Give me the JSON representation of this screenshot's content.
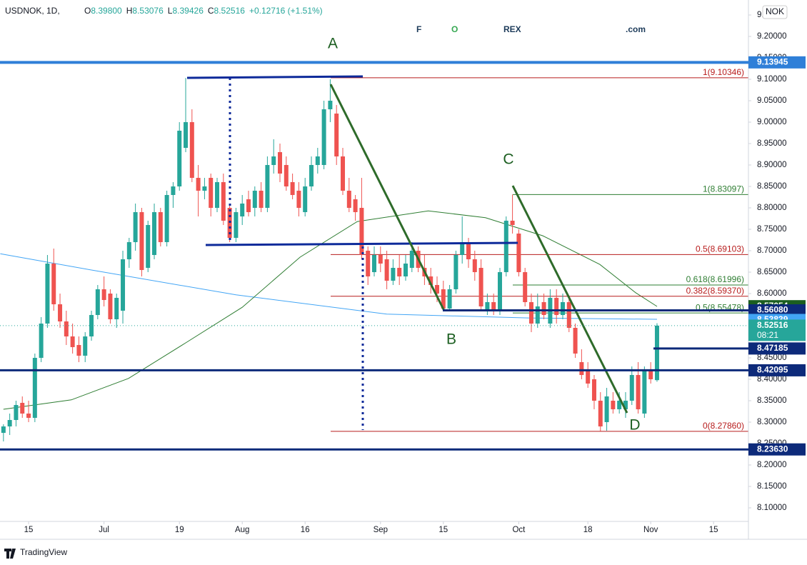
{
  "chart_data": {
    "type": "candlestick",
    "symbol": "USDNOK, 1D,",
    "legend": [
      {
        "key": "O",
        "value": "8.39800"
      },
      {
        "key": "H",
        "value": "8.53076"
      },
      {
        "key": "L",
        "value": "8.39426"
      },
      {
        "key": "C",
        "value": "8.52516"
      },
      {
        "key": "",
        "value": "+0.12716 (+1.51%)"
      }
    ],
    "logo": [
      "F",
      "O",
      "REX",
      ".com"
    ],
    "currency": "NOK",
    "footer": "TradingView",
    "up_color": "#26a69a",
    "down_color": "#ef5350",
    "xlim": [
      -4.55,
      114.55
    ],
    "ylim": [
      8.0683,
      9.285
    ],
    "xticks": [
      {
        "value": 0,
        "label": "15"
      },
      {
        "value": 12,
        "label": "Jul"
      },
      {
        "value": 24,
        "label": "19"
      },
      {
        "value": 34,
        "label": "Aug"
      },
      {
        "value": 44,
        "label": "16"
      },
      {
        "value": 56,
        "label": "Sep"
      },
      {
        "value": 66,
        "label": "15"
      },
      {
        "value": 78,
        "label": "Oct"
      },
      {
        "value": 89,
        "label": "18"
      },
      {
        "value": 99,
        "label": "Nov"
      },
      {
        "value": 109,
        "label": "15"
      }
    ],
    "yticks": [
      {
        "value": 8.1,
        "label": "8.10000"
      },
      {
        "value": 8.15,
        "label": "8.15000"
      },
      {
        "value": 8.2,
        "label": "8.20000"
      },
      {
        "value": 8.25,
        "label": "8.25000"
      },
      {
        "value": 8.3,
        "label": "8.30000"
      },
      {
        "value": 8.35,
        "label": "8.35000"
      },
      {
        "value": 8.4,
        "label": "8.40000"
      },
      {
        "value": 8.45,
        "label": "8.45000"
      },
      {
        "value": 8.5,
        "label": "8.50000"
      },
      {
        "value": 8.55,
        "label": "8.55000"
      },
      {
        "value": 8.6,
        "label": "8.60000"
      },
      {
        "value": 8.65,
        "label": "8.65000"
      },
      {
        "value": 8.7,
        "label": "8.70000"
      },
      {
        "value": 8.75,
        "label": "8.75000"
      },
      {
        "value": 8.8,
        "label": "8.80000"
      },
      {
        "value": 8.85,
        "label": "8.85000"
      },
      {
        "value": 8.9,
        "label": "8.90000"
      },
      {
        "value": 8.95,
        "label": "8.95000"
      },
      {
        "value": 9.0,
        "label": "9.00000"
      },
      {
        "value": 9.05,
        "label": "9.05000"
      },
      {
        "value": 9.1,
        "label": "9.10000"
      },
      {
        "value": 9.15,
        "label": "9.15000"
      },
      {
        "value": 9.2,
        "label": "9.20000"
      },
      {
        "value": 9.25,
        "label": "9.25000"
      }
    ],
    "x": [
      -4,
      -3,
      -2,
      -1,
      0,
      1,
      2,
      3,
      4,
      5,
      6,
      7,
      8,
      9,
      10,
      11,
      12,
      13,
      14,
      15,
      16,
      17,
      18,
      19,
      20,
      21,
      22,
      23,
      24,
      25,
      26,
      27,
      28,
      29,
      30,
      31,
      32,
      33,
      34,
      35,
      36,
      37,
      38,
      39,
      40,
      41,
      42,
      43,
      44,
      45,
      46,
      47,
      48,
      49,
      50,
      51,
      52,
      53,
      54,
      55,
      56,
      57,
      58,
      59,
      60,
      61,
      62,
      63,
      64,
      65,
      66,
      67,
      68,
      69,
      70,
      71,
      72,
      73,
      74,
      75,
      76,
      77,
      78,
      79,
      80,
      81,
      82,
      83,
      84,
      85,
      86,
      87,
      88,
      89,
      90,
      91,
      92,
      93,
      94,
      95,
      96,
      97,
      98,
      99,
      100
    ],
    "ohlc": [
      [
        8.275,
        8.295,
        8.255,
        8.29
      ],
      [
        8.29,
        8.32,
        8.27,
        8.305
      ],
      [
        8.305,
        8.35,
        8.29,
        8.34
      ],
      [
        8.345,
        8.36,
        8.31,
        8.32
      ],
      [
        8.32,
        8.35,
        8.3,
        8.31
      ],
      [
        8.31,
        8.46,
        8.3,
        8.45
      ],
      [
        8.45,
        8.545,
        8.44,
        8.53
      ],
      [
        8.53,
        8.69,
        8.52,
        8.67
      ],
      [
        8.67,
        8.705,
        8.56,
        8.575
      ],
      [
        8.575,
        8.6,
        8.52,
        8.535
      ],
      [
        8.535,
        8.56,
        8.48,
        8.5
      ],
      [
        8.5,
        8.53,
        8.46,
        8.475
      ],
      [
        8.48,
        8.5,
        8.44,
        8.455
      ],
      [
        8.455,
        8.51,
        8.44,
        8.5
      ],
      [
        8.5,
        8.56,
        8.49,
        8.55
      ],
      [
        8.55,
        8.62,
        8.54,
        8.61
      ],
      [
        8.61,
        8.64,
        8.57,
        8.585
      ],
      [
        8.6,
        8.61,
        8.53,
        8.54
      ],
      [
        8.54,
        8.6,
        8.52,
        8.59
      ],
      [
        8.56,
        8.7,
        8.53,
        8.68
      ],
      [
        8.68,
        8.73,
        8.66,
        8.72
      ],
      [
        8.72,
        8.81,
        8.7,
        8.79
      ],
      [
        8.79,
        8.8,
        8.64,
        8.655
      ],
      [
        8.66,
        8.77,
        8.65,
        8.76
      ],
      [
        8.69,
        8.81,
        8.68,
        8.79
      ],
      [
        8.79,
        8.8,
        8.71,
        8.72
      ],
      [
        8.72,
        8.84,
        8.71,
        8.83
      ],
      [
        8.83,
        8.86,
        8.8,
        8.85
      ],
      [
        8.85,
        9.0,
        8.84,
        8.98
      ],
      [
        8.94,
        9.103,
        8.93,
        9.0
      ],
      [
        9.0,
        9.03,
        8.86,
        8.87
      ],
      [
        8.87,
        8.9,
        8.78,
        8.84
      ],
      [
        8.84,
        8.87,
        8.82,
        8.85
      ],
      [
        8.87,
        8.88,
        8.78,
        8.8
      ],
      [
        8.8,
        8.87,
        8.79,
        8.86
      ],
      [
        8.86,
        8.88,
        8.76,
        8.77
      ],
      [
        8.8,
        8.81,
        8.72,
        8.73
      ],
      [
        8.73,
        8.8,
        8.72,
        8.79
      ],
      [
        8.78,
        8.83,
        8.76,
        8.81
      ],
      [
        8.82,
        8.84,
        8.78,
        8.79
      ],
      [
        8.8,
        8.85,
        8.78,
        8.84
      ],
      [
        8.84,
        8.86,
        8.79,
        8.8
      ],
      [
        8.8,
        8.92,
        8.79,
        8.9
      ],
      [
        8.9,
        8.96,
        8.88,
        8.92
      ],
      [
        8.93,
        8.95,
        8.86,
        8.88
      ],
      [
        8.9,
        8.92,
        8.84,
        8.85
      ],
      [
        8.86,
        8.88,
        8.82,
        8.83
      ],
      [
        8.84,
        8.86,
        8.78,
        8.8
      ],
      [
        8.79,
        8.87,
        8.78,
        8.85
      ],
      [
        8.85,
        8.92,
        8.84,
        8.9
      ],
      [
        8.9,
        8.94,
        8.88,
        8.92
      ],
      [
        8.9,
        9.05,
        8.89,
        9.03
      ],
      [
        9.03,
        9.1,
        9.0,
        9.05
      ],
      [
        9.02,
        9.04,
        8.9,
        8.92
      ],
      [
        8.92,
        8.94,
        8.83,
        8.84
      ],
      [
        8.84,
        8.87,
        8.79,
        8.8
      ],
      [
        8.82,
        8.83,
        8.77,
        8.79
      ],
      [
        8.8,
        8.87,
        8.68,
        8.69
      ],
      [
        8.7,
        8.71,
        8.62,
        8.64
      ],
      [
        8.65,
        8.71,
        8.64,
        8.69
      ],
      [
        8.69,
        8.71,
        8.65,
        8.67
      ],
      [
        8.68,
        8.7,
        8.61,
        8.63
      ],
      [
        8.63,
        8.68,
        8.62,
        8.66
      ],
      [
        8.66,
        8.69,
        8.62,
        8.64
      ],
      [
        8.64,
        8.69,
        8.63,
        8.67
      ],
      [
        8.66,
        8.72,
        8.65,
        8.7
      ],
      [
        8.7,
        8.71,
        8.65,
        8.66
      ],
      [
        8.66,
        8.69,
        8.62,
        8.64
      ],
      [
        8.64,
        8.66,
        8.6,
        8.62
      ],
      [
        8.62,
        8.64,
        8.58,
        8.6
      ],
      [
        8.61,
        8.63,
        8.56,
        8.565
      ],
      [
        8.565,
        8.62,
        8.56,
        8.61
      ],
      [
        8.61,
        8.7,
        8.6,
        8.69
      ],
      [
        8.69,
        8.78,
        8.67,
        8.72
      ],
      [
        8.72,
        8.73,
        8.66,
        8.68
      ],
      [
        8.68,
        8.7,
        8.63,
        8.65
      ],
      [
        8.66,
        8.68,
        8.56,
        8.57
      ],
      [
        8.56,
        8.6,
        8.55,
        8.58
      ],
      [
        8.58,
        8.6,
        8.55,
        8.56
      ],
      [
        8.56,
        8.66,
        8.55,
        8.65
      ],
      [
        8.65,
        8.78,
        8.64,
        8.77
      ],
      [
        8.77,
        8.831,
        8.74,
        8.76
      ],
      [
        8.74,
        8.75,
        8.64,
        8.65
      ],
      [
        8.65,
        8.66,
        8.57,
        8.58
      ],
      [
        8.58,
        8.6,
        8.51,
        8.53
      ],
      [
        8.53,
        8.6,
        8.52,
        8.57
      ],
      [
        8.58,
        8.6,
        8.54,
        8.55
      ],
      [
        8.53,
        8.61,
        8.52,
        8.59
      ],
      [
        8.59,
        8.61,
        8.53,
        8.55
      ],
      [
        8.55,
        8.6,
        8.54,
        8.58
      ],
      [
        8.58,
        8.59,
        8.51,
        8.52
      ],
      [
        8.52,
        8.53,
        8.45,
        8.46
      ],
      [
        8.44,
        8.47,
        8.4,
        8.41
      ],
      [
        8.42,
        8.44,
        8.38,
        8.39
      ],
      [
        8.4,
        8.41,
        8.33,
        8.35
      ],
      [
        8.35,
        8.37,
        8.279,
        8.29
      ],
      [
        8.3,
        8.38,
        8.28,
        8.36
      ],
      [
        8.35,
        8.37,
        8.32,
        8.33
      ],
      [
        8.33,
        8.37,
        8.32,
        8.35
      ],
      [
        8.33,
        8.37,
        8.31,
        8.35
      ],
      [
        8.35,
        8.43,
        8.34,
        8.41
      ],
      [
        8.41,
        8.44,
        8.32,
        8.33
      ],
      [
        8.32,
        8.43,
        8.31,
        8.42
      ],
      [
        8.42,
        8.44,
        8.39,
        8.4
      ],
      [
        8.398,
        8.53076,
        8.39426,
        8.52516
      ]
    ],
    "moving_averages": [
      {
        "color": "#42a5f5",
        "x": [
          -4.5,
          10,
          33,
          57,
          80,
          100
        ],
        "values": [
          8.693,
          8.655,
          8.597,
          8.552,
          8.543,
          8.54
        ]
      },
      {
        "color": "#2e7d32",
        "x": [
          -4,
          6.8,
          15.9,
          25,
          34,
          43.2,
          52.3,
          63.6,
          72.7,
          81.8,
          90.9,
          96.6,
          100
        ],
        "values": [
          8.33,
          8.352,
          8.402,
          8.485,
          8.568,
          8.685,
          8.768,
          8.793,
          8.777,
          8.735,
          8.668,
          8.602,
          8.57
        ]
      }
    ],
    "fib_levels": [
      {
        "label": "1(9.10346)",
        "value": 9.10346,
        "color": "#b71c1c"
      },
      {
        "label": "0.5(8.69103)",
        "value": 8.69103,
        "color": "#b71c1c"
      },
      {
        "label": "0.382(8.59370)",
        "value": 8.5937,
        "color": "#b71c1c"
      },
      {
        "label": "0(8.27860)",
        "value": 8.2786,
        "color": "#b71c1c"
      },
      {
        "label": "1(8.83097)",
        "value": 8.83097,
        "color": "#2e7d32"
      },
      {
        "label": "0.618(8.61996)",
        "value": 8.61996,
        "color": "#2e7d32"
      },
      {
        "label": "0.5(8.55478)",
        "value": 8.55478,
        "color": "#2e7d32"
      }
    ],
    "price_labels": [
      {
        "value": 9.13945,
        "color": "#2f7fd8"
      },
      {
        "value": 8.57054,
        "color": "#1b5e20"
      },
      {
        "value": 8.5608,
        "label": "8.56080",
        "color": "#0d2a7a"
      },
      {
        "value": 8.53839,
        "color": "#42a5f5"
      },
      {
        "value": 8.52516,
        "color": "#26a69a",
        "timer": "08:21"
      },
      {
        "value": 8.47185,
        "color": "#0d2a7a"
      },
      {
        "value": 8.42095,
        "color": "#0d2a7a"
      },
      {
        "value": 8.2363,
        "label": "8.23630",
        "color": "#0d2a7a"
      }
    ],
    "annotations": [
      "A",
      "B",
      "C",
      "D"
    ]
  }
}
